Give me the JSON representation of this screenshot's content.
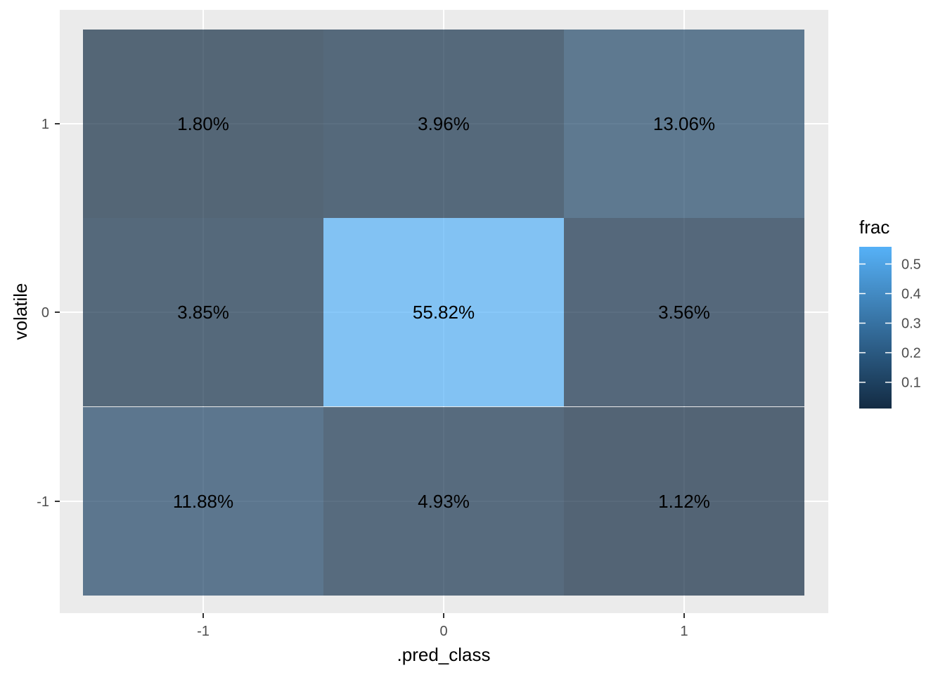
{
  "chart_data": {
    "type": "heatmap",
    "xlabel": ".pred_class",
    "ylabel": "volatile",
    "x_categories": [
      "-1",
      "0",
      "1"
    ],
    "y_categories": [
      "-1",
      "0",
      "1"
    ],
    "cells": [
      {
        "x": "-1",
        "y": "1",
        "value": 0.018,
        "label": "1.80%"
      },
      {
        "x": "0",
        "y": "1",
        "value": 0.0396,
        "label": "3.96%"
      },
      {
        "x": "1",
        "y": "1",
        "value": 0.1306,
        "label": "13.06%"
      },
      {
        "x": "-1",
        "y": "0",
        "value": 0.0385,
        "label": "3.85%"
      },
      {
        "x": "0",
        "y": "0",
        "value": 0.5582,
        "label": "55.82%"
      },
      {
        "x": "1",
        "y": "0",
        "value": 0.0356,
        "label": "3.56%"
      },
      {
        "x": "-1",
        "y": "-1",
        "value": 0.1188,
        "label": "11.88%"
      },
      {
        "x": "0",
        "y": "-1",
        "value": 0.0493,
        "label": "4.93%"
      },
      {
        "x": "1",
        "y": "-1",
        "value": 0.0112,
        "label": "1.12%"
      }
    ],
    "legend": {
      "title": "frac",
      "ticks": [
        0.1,
        0.2,
        0.3,
        0.4,
        0.5
      ],
      "tick_labels": [
        "0.1",
        "0.2",
        "0.3",
        "0.4",
        "0.5"
      ],
      "range": [
        0.0112,
        0.5582
      ],
      "color_low": "#132b43",
      "color_high": "#56b1f7",
      "placement": "right"
    },
    "panel_background": "#ebebeb",
    "grid": true
  }
}
